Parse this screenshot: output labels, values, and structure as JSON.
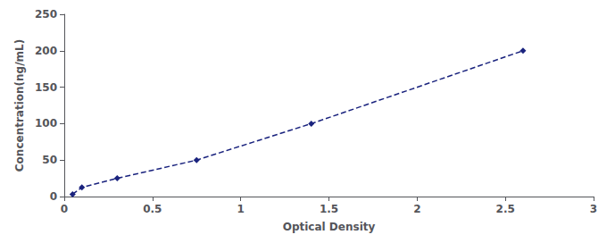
{
  "chart_data": {
    "type": "line",
    "xlabel": "Optical Density",
    "ylabel": "Concentration(ng/mL)",
    "x": [
      0.047,
      0.1,
      0.3,
      0.75,
      1.4,
      2.6
    ],
    "values": [
      3.125,
      12.5,
      25,
      50,
      100,
      200
    ],
    "color": "#1a237e",
    "marker": "diamond",
    "line_style": "dashed",
    "xlim": [
      0,
      3
    ],
    "ylim": [
      0,
      250
    ],
    "xticks": [
      0,
      0.5,
      1,
      1.5,
      2,
      2.5,
      3
    ],
    "yticks": [
      0,
      50,
      100,
      150,
      200,
      250
    ],
    "grid": false
  }
}
